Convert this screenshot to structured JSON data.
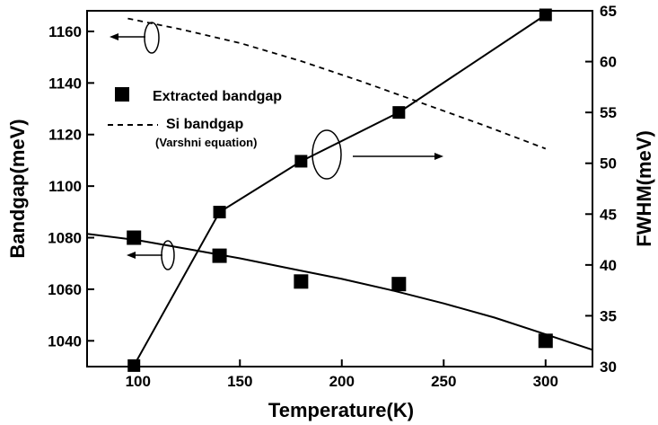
{
  "chart_data": {
    "type": "line",
    "xlabel": "Temperature(K)",
    "ylabel_left": "Bandgap(meV)",
    "ylabel_right": "FWHM(meV)",
    "xlim": [
      75,
      323
    ],
    "ylim_left": [
      1030,
      1168
    ],
    "ylim_right": [
      30,
      65
    ],
    "x_ticks": [
      100,
      150,
      200,
      250,
      300
    ],
    "y_left_ticks": [
      1040,
      1060,
      1080,
      1100,
      1120,
      1140,
      1160
    ],
    "y_right_ticks": [
      30,
      35,
      40,
      45,
      50,
      55,
      60,
      65
    ],
    "grid": false,
    "legend": {
      "position": "upper-left",
      "entries": [
        {
          "label": "Extracted bandgap",
          "marker": "square"
        },
        {
          "label": "Si bandgap",
          "sublabel": "(Varshni equation)",
          "style": "dashed"
        }
      ]
    },
    "series": [
      {
        "name": "Extracted bandgap",
        "axis": "left",
        "style": "markers",
        "x": [
          98,
          140,
          180,
          228,
          300
        ],
        "y": [
          1080,
          1073,
          1063,
          1062,
          1040
        ]
      },
      {
        "name": "Si bandgap",
        "axis": "left",
        "style": "dashed",
        "x": [
          95,
          120,
          150,
          180,
          210,
          240,
          270,
          300
        ],
        "y": [
          1165,
          1161,
          1155.5,
          1148.5,
          1140.5,
          1132,
          1123.5,
          1114.5
        ]
      },
      {
        "axis": "left",
        "style": "solid",
        "x": [
          75,
          100,
          125,
          150,
          175,
          200,
          225,
          250,
          275,
          300,
          323
        ],
        "y": [
          1081.5,
          1079,
          1075.5,
          1072,
          1068,
          1064,
          1059.5,
          1054.5,
          1049,
          1042.5,
          1036.5
        ]
      },
      {
        "axis": "right",
        "style": "line-markers",
        "x": [
          98,
          140,
          180,
          228,
          300
        ],
        "y": [
          30.1,
          45.2,
          50.2,
          55.0,
          64.6
        ]
      }
    ],
    "annotations": [
      {
        "type": "ellipse-arrow",
        "target_axis": "left",
        "note": "solid/dashed bandgap curves -> left axis"
      },
      {
        "type": "ellipse-arrow",
        "target_axis": "right",
        "note": "FWHM curve -> right axis"
      }
    ]
  }
}
